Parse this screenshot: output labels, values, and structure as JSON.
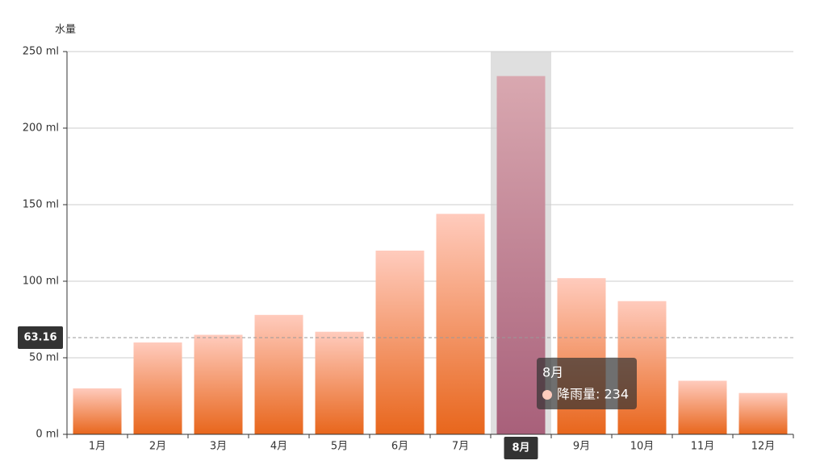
{
  "chart_data": {
    "type": "bar",
    "y_axis_name": "水量",
    "categories": [
      "1月",
      "2月",
      "3月",
      "4月",
      "5月",
      "6月",
      "7月",
      "8月",
      "9月",
      "10月",
      "11月",
      "12月"
    ],
    "series": [
      {
        "name": "降雨量",
        "color": [
          "#ffcbbd",
          "#e8661c"
        ],
        "highlight_color": [
          "#d9a8b0",
          "#a8607a"
        ],
        "values": [
          30,
          60,
          65,
          78,
          67,
          120,
          144,
          234,
          102,
          87,
          35,
          27
        ]
      }
    ],
    "ylim": [
      0,
      250
    ],
    "yticks": [
      {
        "value": 0,
        "label": "0 ml"
      },
      {
        "value": 50,
        "label": "50 ml"
      },
      {
        "value": 100,
        "label": "100 ml"
      },
      {
        "value": 150,
        "label": "150 ml"
      },
      {
        "value": 200,
        "label": "200 ml"
      },
      {
        "value": 250,
        "label": "250 ml"
      }
    ],
    "grid": true,
    "axis_pointer": {
      "value": 63.16
    },
    "tooltip": {
      "title": "8月",
      "text": "降雨量: 234"
    }
  }
}
